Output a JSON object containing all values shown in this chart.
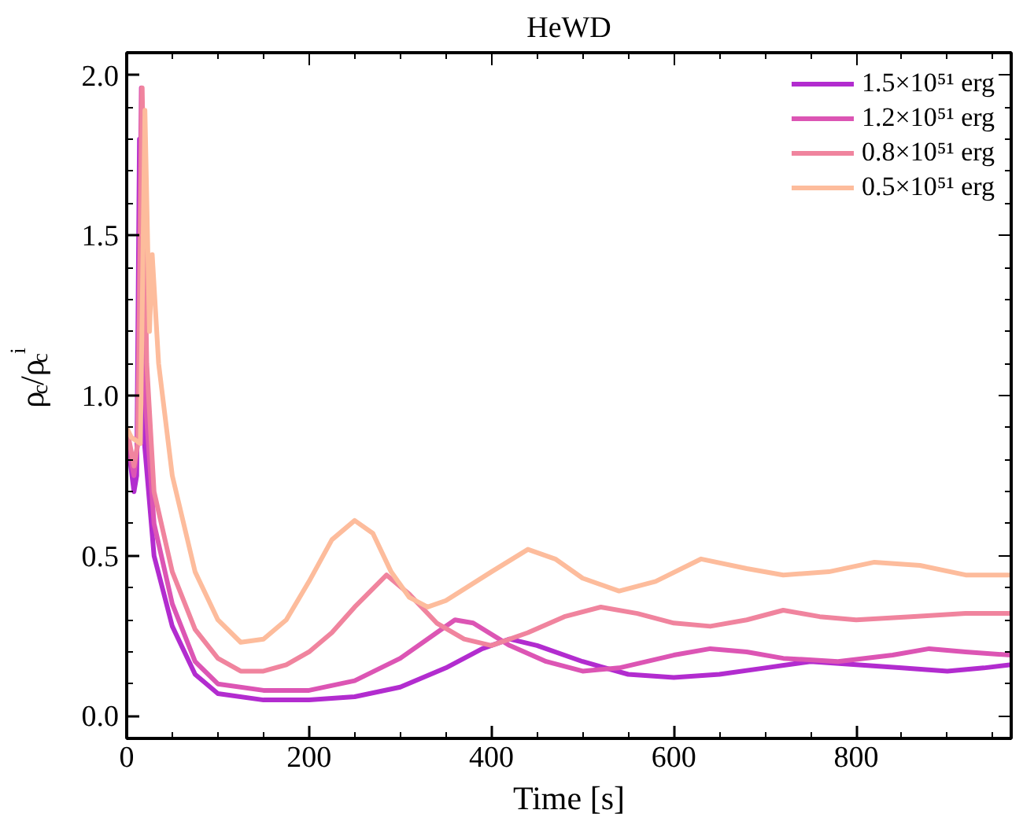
{
  "chart_data": {
    "type": "line",
    "title": "HeWD",
    "xlabel": "Time [s]",
    "ylabel": "ρ$_{c}$/ρ$_{c}$$^{i}$",
    "xlim": [
      0,
      970
    ],
    "ylim": [
      -0.07,
      2.07
    ],
    "xticks": [
      0,
      200,
      400,
      600,
      800
    ],
    "yticks": [
      {
        "value": 0,
        "label": "0.0"
      },
      0.5,
      {
        "value": 1,
        "label": "1.0"
      },
      1.5,
      {
        "value": 2,
        "label": "2.0"
      }
    ],
    "grid": false,
    "legend": "top right",
    "line_style": "solid",
    "marker": "none",
    "series": [
      {
        "name": "1.5×10⁵¹ erg",
        "color": "#b22ccf",
        "x": [
          0,
          8,
          11,
          14,
          18,
          30,
          50,
          75,
          100,
          150,
          200,
          250,
          300,
          350,
          390,
          420,
          450,
          500,
          550,
          600,
          650,
          700,
          750,
          800,
          850,
          900,
          940,
          970
        ],
        "values": [
          0.88,
          0.7,
          0.75,
          1.8,
          0.9,
          0.5,
          0.28,
          0.13,
          0.07,
          0.05,
          0.05,
          0.06,
          0.09,
          0.15,
          0.21,
          0.24,
          0.22,
          0.17,
          0.13,
          0.12,
          0.13,
          0.15,
          0.17,
          0.16,
          0.15,
          0.14,
          0.15,
          0.16
        ]
      },
      {
        "name": "1.2×10⁵¹ erg",
        "color": "#dc55b4",
        "x": [
          0,
          8,
          12,
          16,
          20,
          30,
          50,
          75,
          100,
          150,
          200,
          250,
          300,
          340,
          360,
          380,
          420,
          460,
          500,
          540,
          600,
          640,
          680,
          720,
          780,
          840,
          880,
          920,
          970
        ],
        "values": [
          0.86,
          0.75,
          0.85,
          1.96,
          1.0,
          0.6,
          0.35,
          0.17,
          0.1,
          0.08,
          0.08,
          0.11,
          0.18,
          0.26,
          0.3,
          0.29,
          0.22,
          0.17,
          0.14,
          0.15,
          0.19,
          0.21,
          0.2,
          0.18,
          0.17,
          0.19,
          0.21,
          0.2,
          0.19
        ]
      },
      {
        "name": "0.8×10⁵¹ erg",
        "color": "#f0849e",
        "x": [
          0,
          8,
          12,
          17,
          22,
          30,
          50,
          75,
          100,
          125,
          150,
          175,
          200,
          225,
          250,
          285,
          310,
          340,
          370,
          400,
          440,
          480,
          520,
          560,
          600,
          640,
          680,
          720,
          760,
          800,
          860,
          920,
          970
        ],
        "values": [
          0.9,
          0.78,
          0.85,
          1.96,
          1.1,
          0.7,
          0.45,
          0.27,
          0.18,
          0.14,
          0.14,
          0.16,
          0.2,
          0.26,
          0.34,
          0.44,
          0.38,
          0.29,
          0.24,
          0.22,
          0.26,
          0.31,
          0.34,
          0.32,
          0.29,
          0.28,
          0.3,
          0.33,
          0.31,
          0.3,
          0.31,
          0.32,
          0.32
        ]
      },
      {
        "name": "0.5×10⁵¹ erg",
        "color": "#fdbc9c",
        "x": [
          0,
          5,
          10,
          15,
          20,
          25,
          28,
          35,
          50,
          75,
          100,
          125,
          150,
          175,
          200,
          225,
          250,
          270,
          290,
          310,
          330,
          350,
          400,
          440,
          470,
          500,
          540,
          580,
          630,
          680,
          720,
          770,
          820,
          870,
          920,
          970
        ],
        "values": [
          0.9,
          0.87,
          0.86,
          0.85,
          1.89,
          1.2,
          1.44,
          1.1,
          0.75,
          0.45,
          0.3,
          0.23,
          0.24,
          0.3,
          0.42,
          0.55,
          0.61,
          0.57,
          0.45,
          0.37,
          0.34,
          0.36,
          0.45,
          0.52,
          0.49,
          0.43,
          0.39,
          0.42,
          0.49,
          0.46,
          0.44,
          0.45,
          0.48,
          0.47,
          0.44,
          0.44
        ]
      }
    ]
  }
}
